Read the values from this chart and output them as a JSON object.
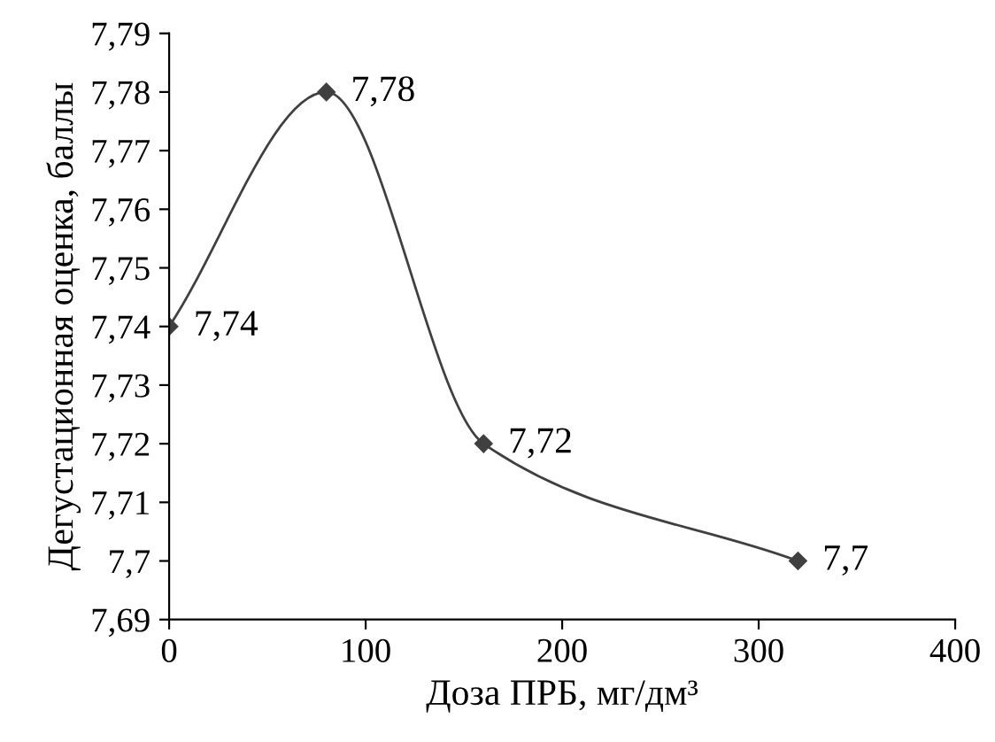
{
  "chart_data": {
    "type": "line",
    "xlabel": "Доза ПРБ, мг/дм³",
    "ylabel": "Дегустационная оценка, баллы",
    "x": [
      0,
      80,
      160,
      320
    ],
    "series": [
      {
        "color": "#404040",
        "values": [
          7.74,
          7.78,
          7.72,
          7.7
        ],
        "value_labels": [
          "7,74",
          "7,78",
          "7,72",
          "7,7"
        ]
      }
    ],
    "xlim": [
      0,
      400
    ],
    "xticks": [
      0,
      100,
      200,
      300,
      400
    ],
    "ylim": [
      7.69,
      7.79
    ],
    "yticks": [
      {
        "value": 7.69,
        "label": "7,69"
      },
      {
        "value": 7.7,
        "label": "7,7"
      },
      {
        "value": 7.71,
        "label": "7,71"
      },
      {
        "value": 7.72,
        "label": "7,72"
      },
      {
        "value": 7.73,
        "label": "7,73"
      },
      {
        "value": 7.74,
        "label": "7,74"
      },
      {
        "value": 7.75,
        "label": "7,75"
      },
      {
        "value": 7.76,
        "label": "7,76"
      },
      {
        "value": 7.77,
        "label": "7,77"
      },
      {
        "value": 7.78,
        "label": "7,78"
      },
      {
        "value": 7.79,
        "label": "7,79"
      }
    ],
    "grid": false,
    "marker": "diamond",
    "line_style": "solid"
  }
}
